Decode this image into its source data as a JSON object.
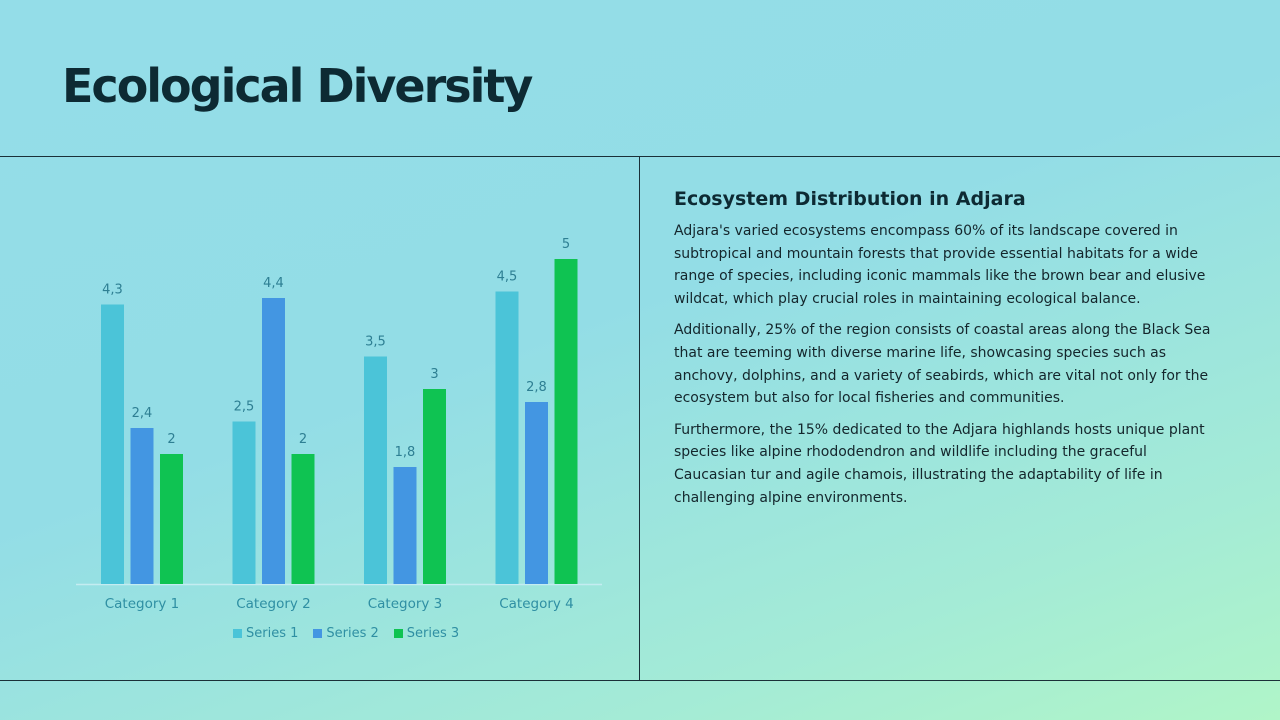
{
  "slide": {
    "title": "Ecological Diversity"
  },
  "text_panel": {
    "heading": "Ecosystem Distribution in Adjara",
    "paragraphs": [
      "Adjara's varied ecosystems encompass 60% of its landscape covered in subtropical and mountain forests that provide essential habitats for a wide range of species, including iconic mammals like the brown bear and elusive wildcat, which play crucial roles in maintaining ecological balance.",
      "Additionally, 25% of the region consists of coastal areas along the Black Sea that are teeming with diverse marine life, showcasing species such as anchovy, dolphins, and a variety of seabirds, which are vital not only for the ecosystem but also for local fisheries and communities.",
      "Furthermore, the 15% dedicated to the Adjara highlands hosts unique plant species like alpine rhododendron and wildlife including the graceful Caucasian tur and agile chamois, illustrating the adaptability of life in challenging alpine environments."
    ]
  },
  "chart_data": {
    "type": "bar",
    "categories": [
      "Category 1",
      "Category 2",
      "Category 3",
      "Category 4"
    ],
    "series": [
      {
        "name": "Series 1",
        "color": "#4bc4d8",
        "values": [
          4.3,
          2.5,
          3.5,
          4.5
        ],
        "labels": [
          "4,3",
          "2,5",
          "3,5",
          "4,5"
        ]
      },
      {
        "name": "Series 2",
        "color": "#4396e2",
        "values": [
          2.4,
          4.4,
          1.8,
          2.8
        ],
        "labels": [
          "2,4",
          "4,4",
          "1,8",
          "2,8"
        ]
      },
      {
        "name": "Series 3",
        "color": "#0fc352",
        "values": [
          2,
          2,
          3,
          5
        ],
        "labels": [
          "2",
          "2",
          "3",
          "5"
        ]
      }
    ],
    "ylim": [
      0,
      5
    ],
    "grid": false,
    "legend_position": "bottom"
  }
}
